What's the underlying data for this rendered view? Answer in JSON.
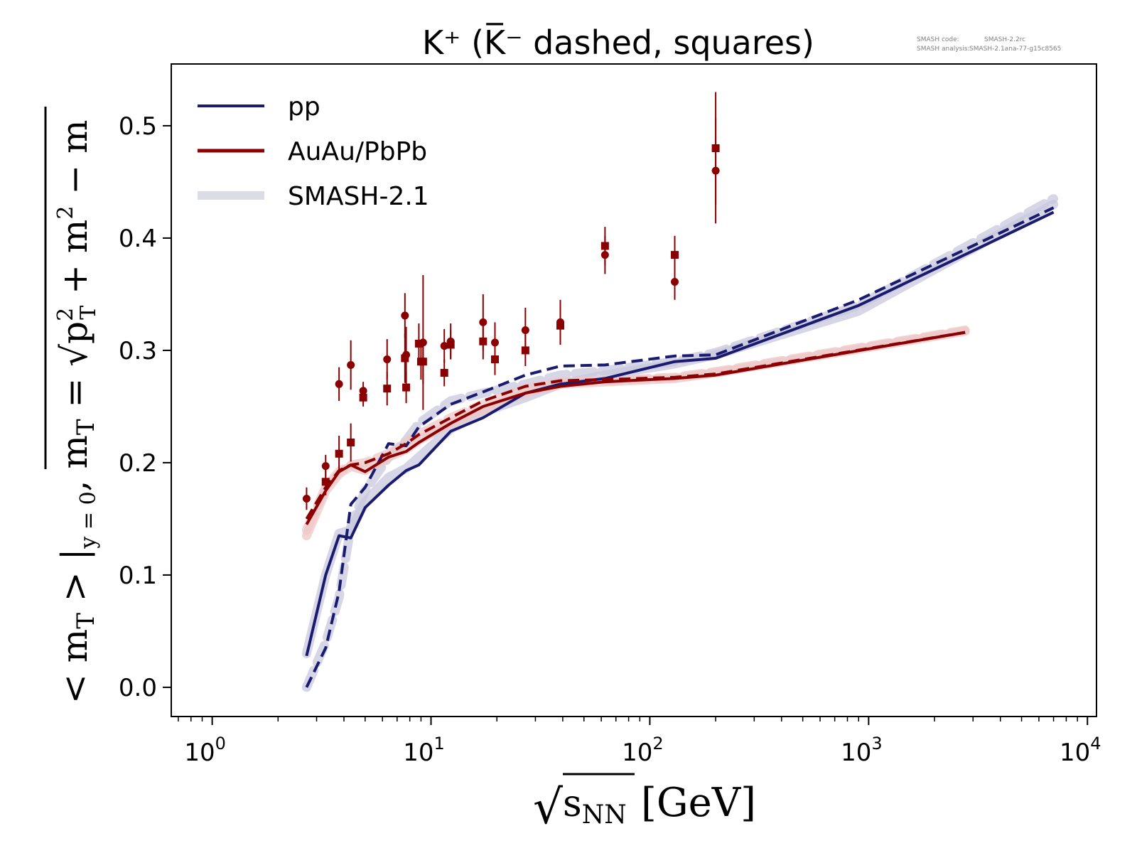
{
  "chart_data": {
    "type": "line",
    "title": "K⁺ (K̅⁻ dashed, squares)",
    "xlabel": {
      "root": "√",
      "var": "s",
      "sub": "NN",
      "unit": "[GeV]"
    },
    "ylabel": {
      "lhs": "< m",
      "lhs_sub": "T",
      "mid": " > |",
      "mid_sub": "y = 0",
      "sep": ",  m",
      "sep_sub": "T",
      "eq": " = √",
      "p": "p",
      "p_sup": "2",
      "p_sub": "T",
      "plus": " + m",
      "m_sup": "2",
      "minus": " − m"
    },
    "xscale": "log",
    "xlim": [
      0.65,
      11000
    ],
    "ylim": [
      -0.026,
      0.555
    ],
    "xticks": [
      {
        "value": 1,
        "base": "10",
        "exp": "0"
      },
      {
        "value": 10,
        "base": "10",
        "exp": "1"
      },
      {
        "value": 100,
        "base": "10",
        "exp": "2"
      },
      {
        "value": 1000,
        "base": "10",
        "exp": "3"
      },
      {
        "value": 10000,
        "base": "10",
        "exp": "4"
      }
    ],
    "yticks": [
      {
        "value": 0.0,
        "label": "0.0"
      },
      {
        "value": 0.1,
        "label": "0.1"
      },
      {
        "value": 0.2,
        "label": "0.2"
      },
      {
        "value": 0.3,
        "label": "0.3"
      },
      {
        "value": 0.4,
        "label": "0.4"
      },
      {
        "value": 0.5,
        "label": "0.5"
      }
    ],
    "legend": {
      "placement": "top-left",
      "entries": [
        {
          "label": "pp",
          "color": "#1a1a6e"
        },
        {
          "label": "AuAu/PbPb",
          "color": "#8b0000"
        },
        {
          "label": "SMASH-2.1",
          "color": "#dcdce6"
        }
      ]
    },
    "colors": {
      "pp": "#1a1a6e",
      "auau": "#8b0000",
      "smash_pp": "#c8c8de",
      "smash_auau": "#efc7c7"
    },
    "smash_info": {
      "code_label": "SMASH code:",
      "code_value": "SMASH-2.2rc",
      "analysis_label": "SMASH analysis:",
      "analysis_value": "SMASH-2.1ana-77-g15c8565"
    },
    "series": [
      {
        "group": "smash",
        "line": "solid",
        "color": "#c8c8de",
        "x": [
          2.7,
          3.3,
          3.8,
          4.3,
          5.0,
          6.4,
          7.7,
          8.8,
          12.3,
          17.3,
          27,
          39,
          62.4,
          130,
          200,
          900,
          7000
        ],
        "y": [
          0.03,
          0.1,
          0.137,
          0.14,
          0.165,
          0.187,
          0.195,
          0.205,
          0.23,
          0.245,
          0.258,
          0.27,
          0.278,
          0.288,
          0.296,
          0.335,
          0.43
        ]
      },
      {
        "group": "smash",
        "line": "dashed",
        "color": "#c8c8de",
        "x": [
          2.7,
          3.3,
          3.8,
          4.3,
          5.0,
          6.4,
          7.7,
          8.8,
          12.3,
          17.3,
          27,
          39,
          62.4,
          130,
          200,
          900,
          7000
        ],
        "y": [
          0.0,
          0.04,
          0.08,
          0.143,
          0.175,
          0.205,
          0.22,
          0.235,
          0.255,
          0.262,
          0.27,
          0.278,
          0.282,
          0.29,
          0.298,
          0.34,
          0.435
        ]
      },
      {
        "group": "smash",
        "line": "solid",
        "color": "#efc7c7",
        "x": [
          2.7,
          3.3,
          3.8,
          4.3,
          5.0,
          6.4,
          7.7,
          8.8,
          12.3,
          17.3,
          27,
          39,
          62.4,
          130,
          200,
          2760
        ],
        "y": [
          0.135,
          0.175,
          0.19,
          0.197,
          0.193,
          0.205,
          0.212,
          0.22,
          0.235,
          0.247,
          0.262,
          0.27,
          0.272,
          0.275,
          0.28,
          0.317
        ]
      },
      {
        "group": "smash",
        "line": "dashed",
        "color": "#efc7c7",
        "x": [
          2.7,
          3.3,
          3.8,
          4.3,
          5.0,
          6.4,
          7.7,
          8.8,
          12.3,
          17.3,
          27,
          39,
          62.4,
          130,
          200,
          2760
        ],
        "y": [
          0.14,
          0.178,
          0.192,
          0.198,
          0.2,
          0.208,
          0.218,
          0.225,
          0.24,
          0.252,
          0.266,
          0.272,
          0.273,
          0.276,
          0.281,
          0.318
        ]
      },
      {
        "group": "model",
        "line": "solid",
        "color": "#1a1a6e",
        "x": [
          2.7,
          3.3,
          3.8,
          4.3,
          5.0,
          6.4,
          7.7,
          8.8,
          12.3,
          17.3,
          27,
          39,
          62.4,
          130,
          200,
          900,
          7000
        ],
        "y": [
          0.028,
          0.1,
          0.135,
          0.133,
          0.16,
          0.18,
          0.193,
          0.198,
          0.228,
          0.24,
          0.262,
          0.27,
          0.275,
          0.29,
          0.293,
          0.34,
          0.423
        ]
      },
      {
        "group": "model",
        "line": "dashed",
        "color": "#1a1a6e",
        "x": [
          2.7,
          3.3,
          3.8,
          4.3,
          5.0,
          6.4,
          7.7,
          8.8,
          12.3,
          17.3,
          27,
          39,
          62.4,
          130,
          200,
          900,
          7000
        ],
        "y": [
          0.0,
          0.035,
          0.085,
          0.163,
          0.178,
          0.217,
          0.215,
          0.232,
          0.252,
          0.263,
          0.278,
          0.286,
          0.287,
          0.295,
          0.296,
          0.345,
          0.427
        ]
      },
      {
        "group": "model",
        "line": "solid",
        "color": "#8b0000",
        "x": [
          2.7,
          3.3,
          3.8,
          4.3,
          5.0,
          6.4,
          7.7,
          8.8,
          12.3,
          17.3,
          27,
          39,
          62.4,
          130,
          200,
          2760
        ],
        "y": [
          0.145,
          0.175,
          0.192,
          0.198,
          0.192,
          0.205,
          0.21,
          0.218,
          0.235,
          0.25,
          0.262,
          0.268,
          0.272,
          0.275,
          0.278,
          0.316
        ]
      },
      {
        "group": "model",
        "line": "dashed",
        "color": "#8b0000",
        "x": [
          2.7,
          3.3,
          3.8,
          4.3,
          5.0,
          6.4,
          7.7,
          8.8,
          12.3,
          17.3,
          27,
          39,
          62.4,
          130,
          200,
          2760
        ],
        "y": [
          0.15,
          0.178,
          0.193,
          0.198,
          0.2,
          0.208,
          0.217,
          0.225,
          0.24,
          0.255,
          0.268,
          0.273,
          0.274,
          0.276,
          0.279,
          0.316
        ]
      }
    ],
    "data_points": {
      "kplus_circles": [
        {
          "x": 2.7,
          "y": 0.168,
          "err": 0.01
        },
        {
          "x": 3.3,
          "y": 0.197,
          "err": 0.01
        },
        {
          "x": 3.8,
          "y": 0.27,
          "err": 0.015
        },
        {
          "x": 4.3,
          "y": 0.287,
          "err": 0.022
        },
        {
          "x": 4.9,
          "y": 0.264,
          "err": 0.008
        },
        {
          "x": 6.3,
          "y": 0.292,
          "err": 0.018
        },
        {
          "x": 7.6,
          "y": 0.331,
          "err": 0.02
        },
        {
          "x": 7.7,
          "y": 0.296,
          "err": 0.025
        },
        {
          "x": 9.2,
          "y": 0.307,
          "err": 0.06
        },
        {
          "x": 11.5,
          "y": 0.304,
          "err": 0.015
        },
        {
          "x": 12.3,
          "y": 0.308,
          "err": 0.016
        },
        {
          "x": 17.3,
          "y": 0.325,
          "err": 0.025
        },
        {
          "x": 19.6,
          "y": 0.307,
          "err": 0.018
        },
        {
          "x": 27,
          "y": 0.318,
          "err": 0.02
        },
        {
          "x": 39,
          "y": 0.325,
          "err": 0.02
        },
        {
          "x": 62.4,
          "y": 0.385,
          "err": 0.017
        },
        {
          "x": 130,
          "y": 0.361,
          "err": 0.016
        },
        {
          "x": 200,
          "y": 0.46,
          "err": 0.047
        }
      ],
      "kminus_squares": [
        {
          "x": 3.3,
          "y": 0.183,
          "err": 0.012
        },
        {
          "x": 3.8,
          "y": 0.208,
          "err": 0.016
        },
        {
          "x": 4.3,
          "y": 0.218,
          "err": 0.017
        },
        {
          "x": 4.9,
          "y": 0.258,
          "err": 0.008
        },
        {
          "x": 6.3,
          "y": 0.266,
          "err": 0.015
        },
        {
          "x": 7.6,
          "y": 0.293,
          "err": 0.022
        },
        {
          "x": 7.7,
          "y": 0.267,
          "err": 0.014
        },
        {
          "x": 8.8,
          "y": 0.306,
          "err": 0.018
        },
        {
          "x": 9.0,
          "y": 0.29,
          "err": 0.016
        },
        {
          "x": 9.2,
          "y": 0.29,
          "err": 0.02
        },
        {
          "x": 11.5,
          "y": 0.28,
          "err": 0.012
        },
        {
          "x": 12.3,
          "y": 0.305,
          "err": 0.013
        },
        {
          "x": 17.3,
          "y": 0.308,
          "err": 0.016
        },
        {
          "x": 19.6,
          "y": 0.292,
          "err": 0.014
        },
        {
          "x": 27,
          "y": 0.3,
          "err": 0.014
        },
        {
          "x": 39,
          "y": 0.322,
          "err": 0.017
        },
        {
          "x": 62.4,
          "y": 0.393,
          "err": 0.017
        },
        {
          "x": 130,
          "y": 0.385,
          "err": 0.017
        },
        {
          "x": 200,
          "y": 0.48,
          "err": 0.05
        }
      ]
    }
  }
}
